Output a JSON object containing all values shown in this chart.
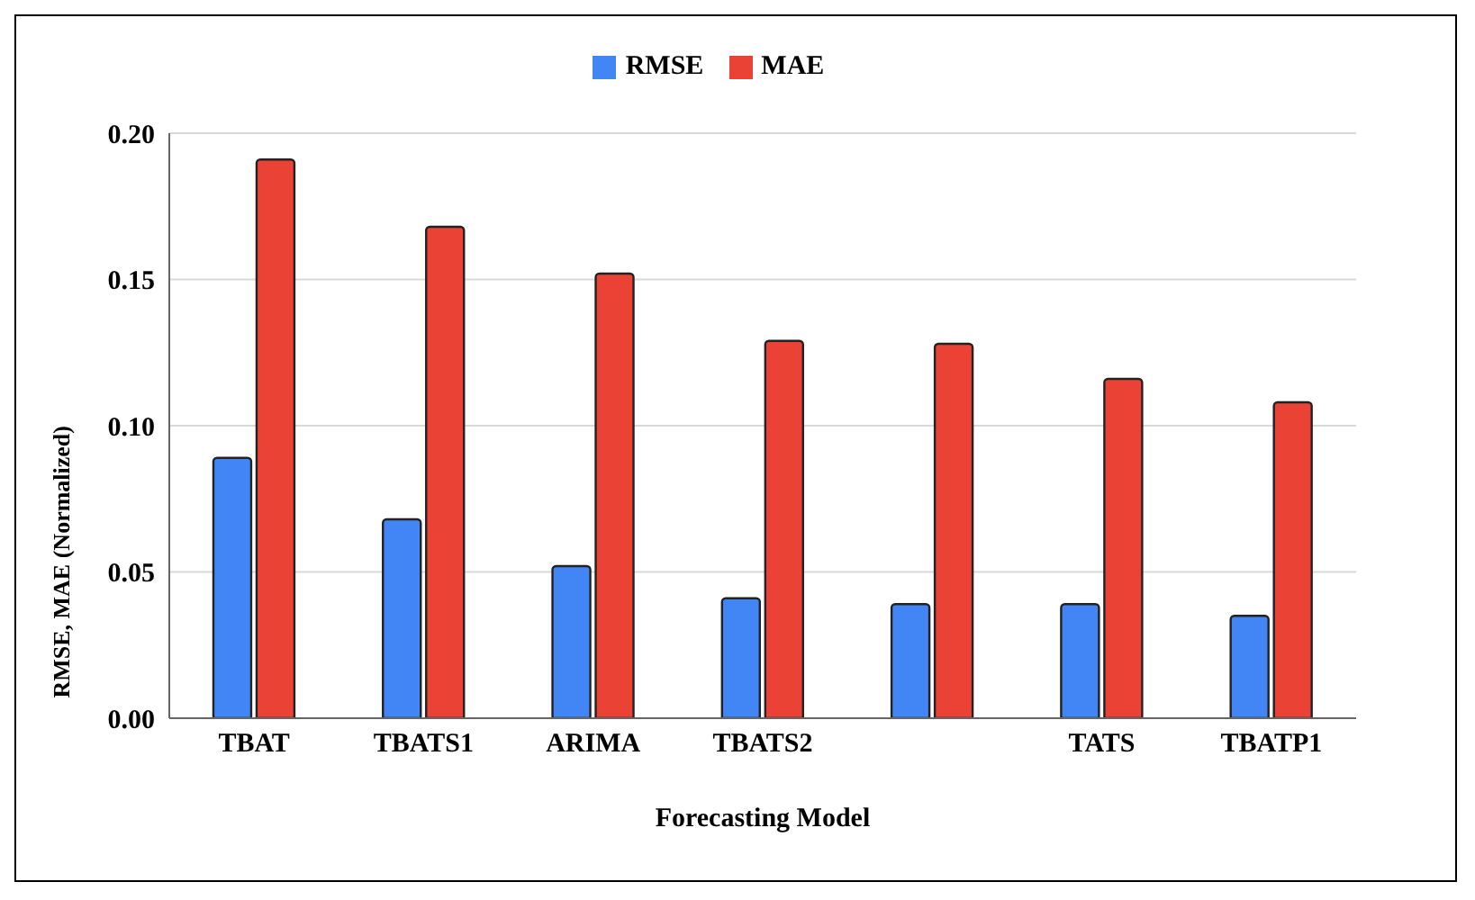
{
  "chart_data": {
    "type": "bar",
    "xlabel": "Forecasting Model",
    "ylabel": "RMSE, MAE (Normalized)",
    "categories": [
      "TBAT",
      "TBATS1",
      "ARIMA",
      "TBATS2",
      null,
      "TATS",
      "TBATP1"
    ],
    "series": [
      {
        "name": "RMSE",
        "color": "#4285f4",
        "values": [
          0.089,
          0.068,
          0.052,
          0.041,
          0.039,
          0.039,
          0.035
        ]
      },
      {
        "name": "MAE",
        "color": "#ea4335",
        "values": [
          0.191,
          0.168,
          0.152,
          0.129,
          0.128,
          0.116,
          0.108
        ]
      }
    ],
    "ylim": [
      0,
      0.2
    ],
    "yticks": [
      {
        "value": 0,
        "label": "0.00"
      },
      {
        "value": 0.05,
        "label": "0.05"
      },
      {
        "value": 0.1,
        "label": "0.10"
      },
      {
        "value": 0.15,
        "label": "0.15"
      },
      {
        "value": 0.2,
        "label": "0.20"
      }
    ],
    "grid": "y",
    "legend": "top"
  }
}
